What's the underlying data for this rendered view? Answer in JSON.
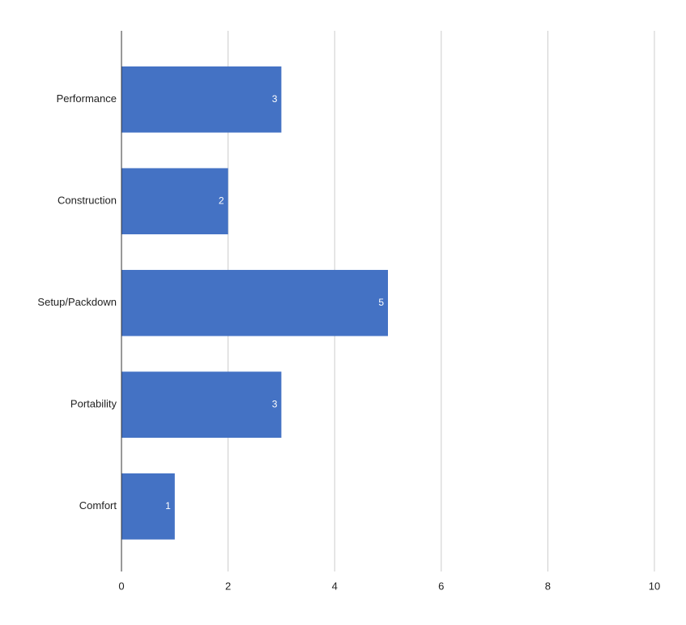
{
  "chart_data": {
    "type": "bar",
    "orientation": "horizontal",
    "categories": [
      "Performance",
      "Construction",
      "Setup/Packdown",
      "Portability",
      "Comfort"
    ],
    "values": [
      3,
      2,
      5,
      3,
      1
    ],
    "color": "#4472c4",
    "xlim": [
      0,
      10
    ],
    "xticks": [
      0,
      2,
      4,
      6,
      8,
      10
    ],
    "grid": true,
    "data_labels": true
  }
}
